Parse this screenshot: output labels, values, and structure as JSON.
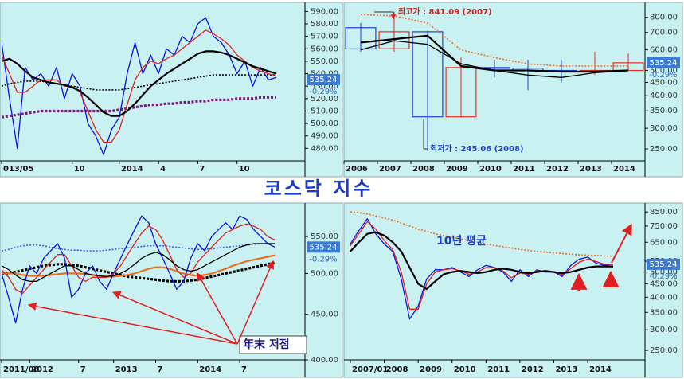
{
  "title": "코스닥 지수",
  "chart_data": [
    {
      "type": "line",
      "log_scale": false,
      "categories": [
        "013/05",
        null,
        null,
        null,
        null,
        null,
        null,
        null,
        null,
        "10",
        null,
        null,
        null,
        null,
        null,
        "2014",
        null,
        null,
        null,
        null,
        "4",
        null,
        null,
        null,
        null,
        "7",
        null,
        null,
        null,
        null,
        "10",
        null,
        null,
        null,
        null,
        null
      ],
      "ylim": [
        470,
        596
      ],
      "yticks": [
        {
          "value": 480,
          "label": "480.00"
        },
        {
          "value": 490,
          "label": "490.00"
        },
        {
          "value": 500,
          "label": "500.00"
        },
        {
          "value": 510,
          "label": "510.00"
        },
        {
          "value": 520,
          "label": "520.00"
        },
        {
          "value": 530,
          "label": "530.00"
        },
        {
          "value": 540,
          "label": "540.00"
        },
        {
          "value": 550,
          "label": "550.00"
        },
        {
          "value": 560,
          "label": "560.00"
        },
        {
          "value": 570,
          "label": "570.00"
        },
        {
          "value": 580,
          "label": "580.00"
        },
        {
          "value": 590,
          "label": "590.00"
        }
      ],
      "last": 535.24,
      "change": {
        "value": -0.29,
        "label": "-0.29%"
      },
      "series": [
        {
          "color": "#7a1a7a",
          "style": "thick-dotted",
          "values": [
            505,
            506,
            507,
            508,
            509,
            510,
            510,
            510,
            510,
            510,
            510,
            510,
            510,
            510,
            510,
            511,
            512,
            513,
            514,
            515,
            515,
            516,
            516,
            517,
            517,
            518,
            518,
            519,
            519,
            519,
            520,
            520,
            520,
            521,
            521,
            521
          ]
        },
        {
          "color": "#000000",
          "style": "dotted",
          "values": [
            530,
            532,
            533,
            534,
            534,
            534,
            533,
            532,
            531,
            530,
            529,
            528,
            527,
            527,
            527,
            527,
            528,
            529,
            530,
            531,
            532,
            533,
            534,
            535,
            536,
            537,
            538,
            539,
            539,
            539,
            539,
            539,
            539,
            539,
            539,
            539
          ]
        },
        {
          "color": "#1010e0",
          "style": "solid",
          "values": [
            565,
            520,
            480,
            545,
            535,
            540,
            530,
            545,
            520,
            540,
            530,
            500,
            490,
            475,
            495,
            505,
            540,
            565,
            540,
            555,
            540,
            560,
            555,
            570,
            565,
            580,
            585,
            570,
            565,
            555,
            540,
            550,
            530,
            545,
            535,
            537
          ]
        },
        {
          "color": "#e02020",
          "style": "solid",
          "values": [
            555,
            540,
            525,
            525,
            530,
            535,
            535,
            535,
            530,
            530,
            525,
            510,
            495,
            485,
            485,
            495,
            515,
            535,
            545,
            550,
            548,
            552,
            555,
            560,
            565,
            570,
            575,
            572,
            568,
            563,
            555,
            550,
            545,
            542,
            540,
            538
          ]
        },
        {
          "color": "#000000",
          "style": "thick",
          "values": [
            550,
            552,
            548,
            542,
            537,
            535,
            533,
            532,
            531,
            529,
            526,
            521,
            515,
            509,
            506,
            506,
            510,
            516,
            523,
            530,
            535,
            540,
            544,
            548,
            552,
            556,
            558,
            558,
            557,
            555,
            552,
            549,
            546,
            544,
            542,
            540
          ]
        }
      ]
    },
    {
      "type": "candlestick",
      "log_scale": true,
      "categories": [
        "2006",
        "2007",
        "2008",
        "2009",
        "2010",
        "2011",
        "2012",
        "2013",
        "2014"
      ],
      "open": [
        730,
        606,
        704,
        332,
        513,
        510,
        500,
        496,
        500
      ],
      "high": [
        760,
        841.09,
        710,
        560,
        550,
        550,
        550,
        590,
        580
      ],
      "low": [
        590,
        590,
        245.06,
        330,
        470,
        420,
        450,
        480,
        500
      ],
      "close": [
        605,
        704,
        332,
        513,
        510,
        500,
        496,
        500,
        535.24
      ],
      "up_color": "#e03020",
      "down_color": "#2040d0",
      "ylim": [
        225,
        900
      ],
      "yticks": [
        {
          "value": 250,
          "label": "250.00"
        },
        {
          "value": 300,
          "label": "300.00"
        },
        {
          "value": 350,
          "label": "350.00"
        },
        {
          "value": 400,
          "label": "400.00"
        },
        {
          "value": 450,
          "label": "450.00"
        },
        {
          "value": 500,
          "label": "500.00"
        },
        {
          "value": 600,
          "label": "600.00"
        },
        {
          "value": 700,
          "label": "700.00"
        },
        {
          "value": 800,
          "label": "800.00"
        }
      ],
      "last": 535.24,
      "change": {
        "value": -0.29,
        "label": "-0.29%"
      },
      "series": [
        {
          "color": "#e87020",
          "style": "dotted",
          "values": [
            820,
            810,
            760,
            600,
            560,
            530,
            520,
            520,
            520
          ]
        },
        {
          "color": "#000000",
          "style": "solid",
          "values": [
            600,
            650,
            630,
            530,
            500,
            480,
            470,
            490,
            500
          ]
        },
        {
          "color": "#000000",
          "style": "thick",
          "values": [
            640,
            660,
            680,
            520,
            500,
            500,
            495,
            495,
            500
          ]
        }
      ],
      "annotations": [
        {
          "text": "최고가 : 841.09 (2007)",
          "color": "#d02020"
        },
        {
          "text": "최저가 : 245.06 (2008)",
          "color": "#2040d0"
        }
      ]
    },
    {
      "type": "line",
      "log_scale": true,
      "categories": [
        "2011/08",
        null,
        null,
        null,
        "2012",
        null,
        null,
        null,
        null,
        null,
        null,
        "7",
        null,
        null,
        null,
        null,
        "2013",
        null,
        null,
        null,
        null,
        null,
        "7",
        null,
        null,
        null,
        null,
        null,
        "2014",
        null,
        null,
        null,
        null,
        null,
        "7",
        null,
        null,
        null,
        null,
        null
      ],
      "ylim": [
        400,
        596
      ],
      "yticks": [
        {
          "value": 400,
          "label": "400.00"
        },
        {
          "value": 450,
          "label": "450.00"
        },
        {
          "value": 500,
          "label": "500.00"
        },
        {
          "value": 550,
          "label": "550.00"
        }
      ],
      "last": 535.24,
      "change": {
        "value": -0.29,
        "label": "-0.29%"
      },
      "series": [
        {
          "color": "#3060ff",
          "style": "dotted",
          "values": [
            530,
            532,
            535,
            537,
            538,
            538,
            537,
            535,
            533,
            532,
            531,
            531,
            530,
            530,
            530,
            531,
            532,
            533,
            534,
            535,
            536,
            537,
            537,
            537,
            536,
            535,
            534,
            533,
            532,
            532,
            533,
            534,
            535,
            536,
            537,
            538,
            539,
            540,
            540,
            540
          ]
        },
        {
          "color": "#000000",
          "style": "thick-dotted",
          "values": [
            500,
            500,
            502,
            504,
            506,
            508,
            510,
            511,
            512,
            512,
            511,
            510,
            508,
            506,
            504,
            502,
            500,
            498,
            496,
            495,
            494,
            493,
            492,
            491,
            490,
            490,
            490,
            491,
            492,
            494,
            496,
            498,
            500,
            502,
            504,
            506,
            508,
            510,
            512,
            514
          ]
        },
        {
          "color": "#e87020",
          "style": "thick",
          "values": [
            500,
            500,
            500,
            498,
            497,
            497,
            497,
            498,
            499,
            500,
            500,
            500,
            499,
            498,
            497,
            496,
            496,
            497,
            498,
            500,
            503,
            506,
            508,
            508,
            506,
            503,
            500,
            498,
            497,
            498,
            500,
            503,
            506,
            510,
            513,
            516,
            518,
            520,
            522,
            524
          ]
        },
        {
          "color": "#1010e0",
          "style": "solid",
          "values": [
            500,
            470,
            440,
            480,
            510,
            500,
            520,
            530,
            540,
            520,
            470,
            480,
            500,
            510,
            490,
            480,
            500,
            520,
            540,
            560,
            580,
            570,
            540,
            520,
            500,
            480,
            490,
            520,
            540,
            530,
            550,
            560,
            570,
            560,
            580,
            575,
            560,
            550,
            540,
            535.24
          ]
        },
        {
          "color": "#e02020",
          "style": "solid",
          "values": [
            505,
            495,
            480,
            475,
            485,
            495,
            505,
            515,
            525,
            525,
            510,
            495,
            490,
            495,
            495,
            495,
            500,
            510,
            525,
            540,
            555,
            565,
            560,
            545,
            525,
            505,
            495,
            500,
            515,
            525,
            535,
            545,
            555,
            560,
            565,
            568,
            565,
            560,
            550,
            545
          ]
        },
        {
          "color": "#000000",
          "style": "solid",
          "values": [
            510,
            505,
            498,
            492,
            490,
            490,
            495,
            500,
            505,
            510,
            510,
            505,
            500,
            498,
            497,
            496,
            497,
            500,
            505,
            512,
            520,
            525,
            528,
            525,
            518,
            510,
            505,
            503,
            505,
            510,
            515,
            520,
            525,
            530,
            535,
            538,
            540,
            540,
            540,
            540
          ]
        }
      ],
      "annotations": [
        {
          "text": "年末 저점",
          "color": "#1a1a80"
        }
      ]
    },
    {
      "type": "line",
      "log_scale": true,
      "categories": [
        "2007/01",
        null,
        null,
        null,
        "2008",
        null,
        null,
        null,
        "2009",
        null,
        null,
        null,
        "2010",
        null,
        null,
        null,
        "2011",
        null,
        null,
        null,
        "2012",
        null,
        null,
        null,
        "2013",
        null,
        null,
        null,
        "2014",
        null,
        null,
        null
      ],
      "ylim": [
        230,
        900
      ],
      "yticks": [
        {
          "value": 250,
          "label": "250.00"
        },
        {
          "value": 300,
          "label": "300.00"
        },
        {
          "value": 350,
          "label": "350.00"
        },
        {
          "value": 400,
          "label": "400.00"
        },
        {
          "value": 450,
          "label": "450.00"
        },
        {
          "value": 500,
          "label": "500.00"
        },
        {
          "value": 550,
          "label": "550.00"
        },
        {
          "value": 650,
          "label": "650.00"
        },
        {
          "value": 750,
          "label": "750.00"
        },
        {
          "value": 850,
          "label": "850.00"
        }
      ],
      "last": 535.24,
      "change": {
        "value": -0.29,
        "label": "-0.29%"
      },
      "series": [
        {
          "color": "#e87020",
          "style": "dotted",
          "values": [
            850,
            845,
            835,
            820,
            805,
            790,
            770,
            750,
            730,
            715,
            700,
            690,
            680,
            670,
            660,
            650,
            640,
            632,
            625,
            618,
            610,
            605,
            600,
            596,
            592,
            588,
            585,
            582,
            580,
            578,
            576,
            575
          ]
        },
        {
          "color": "#1010e0",
          "style": "solid",
          "values": [
            640,
            720,
            800,
            700,
            640,
            600,
            470,
            330,
            370,
            470,
            510,
            510,
            520,
            500,
            480,
            510,
            530,
            520,
            500,
            460,
            510,
            480,
            510,
            500,
            500,
            480,
            530,
            560,
            570,
            540,
            530,
            535.24
          ]
        },
        {
          "color": "#e02020",
          "style": "solid",
          "values": [
            630,
            700,
            780,
            730,
            660,
            610,
            500,
            360,
            360,
            450,
            500,
            510,
            515,
            505,
            490,
            500,
            520,
            520,
            505,
            475,
            495,
            490,
            505,
            502,
            500,
            488,
            515,
            545,
            560,
            548,
            535,
            535
          ]
        },
        {
          "color": "#000000",
          "style": "thick",
          "values": [
            600,
            650,
            700,
            710,
            690,
            650,
            600,
            520,
            450,
            430,
            460,
            490,
            500,
            505,
            500,
            495,
            500,
            510,
            515,
            510,
            500,
            495,
            500,
            505,
            500,
            495,
            500,
            510,
            520,
            525,
            525,
            525
          ]
        }
      ],
      "annotations": [
        {
          "text": "10년 평균",
          "color": "#1a3ccc"
        }
      ]
    }
  ]
}
